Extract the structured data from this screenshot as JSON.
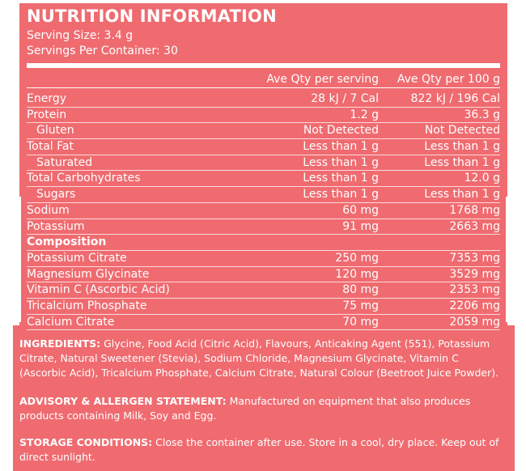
{
  "panel": {
    "title": "NUTRITION INFORMATION",
    "serving_size": "Serving Size: 3.4 g",
    "servings_per_container": "Servings Per Container: 30"
  },
  "table": {
    "col1_header": "Ave Qty per serving",
    "col2_header": "Ave Qty per 100 g",
    "rows": [
      {
        "name": "Energy",
        "per_serving": "28 kJ / 7 Cal",
        "per_100g": "822 kJ / 196 Cal"
      },
      {
        "name": "Protein",
        "per_serving": "1.2 g",
        "per_100g": "36.3 g"
      },
      {
        "name": "Gluten",
        "per_serving": "Not Detected",
        "per_100g": "Not Detected"
      },
      {
        "name": "Total Fat",
        "per_serving": "Less than 1 g",
        "per_100g": "Less than 1 g"
      },
      {
        "name": "Saturated",
        "per_serving": "Less than 1 g",
        "per_100g": "Less than 1 g"
      },
      {
        "name": "Total Carbohydrates",
        "per_serving": "Less than 1 g",
        "per_100g": "12.0 g"
      },
      {
        "name": "Sugars",
        "per_serving": "Less than 1 g",
        "per_100g": "Less than 1 g"
      },
      {
        "name": "Sodium",
        "per_serving": "60 mg",
        "per_100g": "1768 mg"
      },
      {
        "name": "Potassium",
        "per_serving": "91 mg",
        "per_100g": "2663 mg"
      },
      {
        "name": "Composition",
        "per_serving": "",
        "per_100g": ""
      },
      {
        "name": "Potassium Citrate",
        "per_serving": "250 mg",
        "per_100g": "7353 mg"
      },
      {
        "name": "Magnesium Glycinate",
        "per_serving": "120 mg",
        "per_100g": "3529 mg"
      },
      {
        "name": "Vitamin C (Ascorbic Acid)",
        "per_serving": "80 mg",
        "per_100g": "2353 mg"
      },
      {
        "name": "Tricalcium Phosphate",
        "per_serving": "75 mg",
        "per_100g": "2206 mg"
      },
      {
        "name": "Calcium Citrate",
        "per_serving": "70 mg",
        "per_100g": "2059 mg"
      }
    ]
  },
  "ingredients": {
    "label": "INGREDIENTS:",
    "text": " Glycine, Food Acid (Citric Acid), Flavours, Anticaking Agent (551), Potassium Citrate, Natural Sweetener (Stevia), Sodium Chloride, Magnesium Glycinate, Vitamin C (Ascorbic Acid), Tricalcium Phosphate, Calcium Citrate, Natural Colour (Beetroot Juice Powder)."
  },
  "advisory": {
    "label": "ADVISORY & ALLERGEN STATEMENT:",
    "text": " Manufactured on equipment that also produces products containing Milk, Soy and Egg."
  },
  "storage": {
    "label": "STORAGE CONDITIONS:",
    "text": " Close the container after use. Store in a cool, dry place. Keep out of direct sunlight."
  },
  "colors": {
    "background": "#ef6b70",
    "text": "#ffffff"
  }
}
